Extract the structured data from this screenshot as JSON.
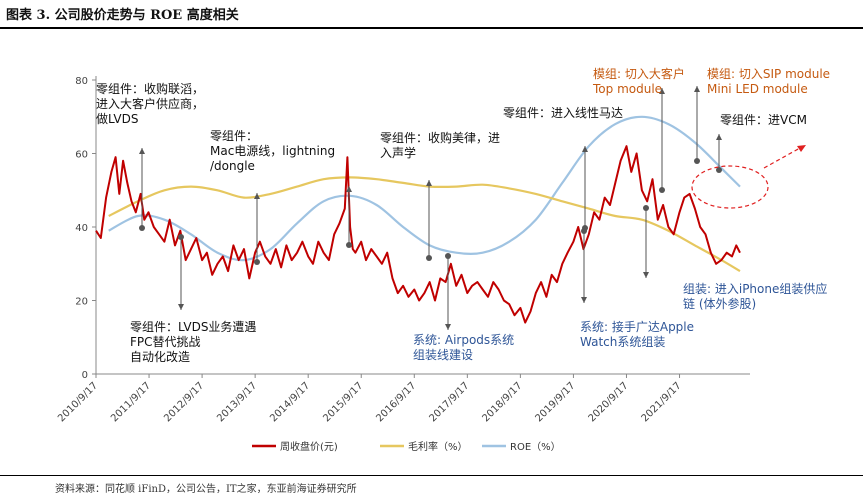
{
  "header": {
    "title": "图表 3.  公司股价走势与 ROE 高度相关"
  },
  "source": "资料来源：同花顺 iFinD，公司公告，IT之家，东亚前海证券研究所",
  "chart_data": {
    "type": "line",
    "title": "",
    "xlabel": "",
    "ylabel": "",
    "ylim": [
      0,
      80
    ],
    "yticks": [
      0,
      20,
      40,
      60,
      80
    ],
    "xticks": [
      "2010/9/17",
      "2011/9/17",
      "2012/9/17",
      "2013/9/17",
      "2014/9/17",
      "2015/9/17",
      "2016/9/17",
      "2017/9/17",
      "2018/9/17",
      "2019/9/17",
      "2020/9/17",
      "2021/9/17"
    ],
    "x_range": [
      2010.71,
      2022.85
    ],
    "grid": false,
    "legend_position": "bottom",
    "colors": {
      "price": "#c00000",
      "margin": "#e6c75f",
      "roe": "#9fc3e2",
      "annotation": "#555555",
      "highlight": "#e02020"
    },
    "series": [
      {
        "name": "周收盘价(元)",
        "x": [
          2010.71,
          2010.8,
          2010.9,
          2011.0,
          2011.08,
          2011.15,
          2011.22,
          2011.3,
          2011.38,
          2011.46,
          2011.55,
          2011.62,
          2011.7,
          2011.8,
          2011.9,
          2012.0,
          2012.1,
          2012.2,
          2012.3,
          2012.4,
          2012.5,
          2012.6,
          2012.71,
          2012.8,
          2012.9,
          2013.0,
          2013.1,
          2013.2,
          2013.3,
          2013.4,
          2013.5,
          2013.6,
          2013.71,
          2013.8,
          2013.9,
          2014.0,
          2014.1,
          2014.2,
          2014.3,
          2014.4,
          2014.5,
          2014.6,
          2014.71,
          2014.8,
          2014.9,
          2015.0,
          2015.1,
          2015.2,
          2015.3,
          2015.4,
          2015.45,
          2015.5,
          2015.55,
          2015.6,
          2015.71,
          2015.8,
          2015.9,
          2016.0,
          2016.1,
          2016.2,
          2016.3,
          2016.4,
          2016.5,
          2016.6,
          2016.71,
          2016.8,
          2016.9,
          2017.0,
          2017.1,
          2017.2,
          2017.3,
          2017.4,
          2017.5,
          2017.6,
          2017.71,
          2017.8,
          2017.9,
          2018.0,
          2018.1,
          2018.2,
          2018.3,
          2018.4,
          2018.5,
          2018.6,
          2018.71,
          2018.8,
          2018.9,
          2019.0,
          2019.1,
          2019.2,
          2019.3,
          2019.4,
          2019.5,
          2019.6,
          2019.71,
          2019.8,
          2019.9,
          2020.0,
          2020.1,
          2020.2,
          2020.3,
          2020.4,
          2020.5,
          2020.6,
          2020.71,
          2020.8,
          2020.9,
          2021.0,
          2021.1,
          2021.2,
          2021.3,
          2021.4,
          2021.5,
          2021.6,
          2021.71,
          2021.8,
          2021.9,
          2022.0,
          2022.1,
          2022.2,
          2022.3,
          2022.4,
          2022.5,
          2022.6,
          2022.7,
          2022.78,
          2022.85
        ],
        "values": [
          39,
          37,
          48,
          55,
          59,
          49,
          58,
          52,
          47,
          44,
          49,
          42,
          44,
          40,
          38,
          36,
          42,
          35,
          39,
          31,
          34,
          37,
          31,
          33,
          27,
          30,
          32,
          28,
          35,
          31,
          34,
          26,
          33,
          36,
          32,
          30,
          34,
          29,
          35,
          31,
          33,
          36,
          32,
          30,
          36,
          33,
          31,
          38,
          41,
          45,
          59,
          40,
          34,
          33,
          36,
          31,
          34,
          32,
          30,
          33,
          26,
          22,
          24,
          21,
          23,
          20,
          22,
          25,
          20,
          26,
          25,
          30,
          24,
          27,
          22,
          24,
          25,
          23,
          21,
          25,
          23,
          20,
          19,
          16,
          18,
          14,
          17,
          22,
          25,
          21,
          27,
          25,
          30,
          33,
          36,
          40,
          34,
          38,
          44,
          42,
          48,
          46,
          52,
          58,
          62,
          55,
          60,
          50,
          47,
          53,
          42,
          46,
          40,
          38,
          44,
          48,
          49,
          45,
          40,
          38,
          33,
          30,
          31,
          33,
          32,
          35,
          33
        ],
        "color": "#c00000"
      },
      {
        "name": "毛利率（%）",
        "x": [
          2010.95,
          2011.5,
          2012.0,
          2012.5,
          2013.0,
          2013.5,
          2014.0,
          2014.5,
          2015.0,
          2015.5,
          2016.0,
          2016.5,
          2017.0,
          2017.5,
          2018.0,
          2018.5,
          2019.0,
          2019.5,
          2020.0,
          2020.5,
          2021.0,
          2021.5,
          2022.0,
          2022.5,
          2022.85
        ],
        "values": [
          43,
          47,
          50,
          51,
          50,
          48,
          49,
          51,
          53,
          53.5,
          53,
          52,
          51,
          51,
          51.5,
          50.5,
          49,
          47,
          45,
          43,
          42,
          39,
          35,
          31,
          28
        ],
        "color": "#e6c75f"
      },
      {
        "name": "ROE（%）",
        "x": [
          2010.95,
          2011.5,
          2012.0,
          2012.5,
          2013.0,
          2013.5,
          2014.0,
          2014.5,
          2015.0,
          2015.5,
          2016.0,
          2016.5,
          2017.0,
          2017.5,
          2018.0,
          2018.5,
          2019.0,
          2019.5,
          2020.0,
          2020.5,
          2021.0,
          2021.5,
          2022.0,
          2022.5,
          2022.85
        ],
        "values": [
          39,
          43,
          42,
          38,
          33,
          31,
          34,
          41,
          47,
          48.5,
          46,
          40,
          35,
          33,
          33,
          36,
          42,
          52,
          62,
          68,
          70,
          68,
          63,
          56,
          51
        ],
        "color": "#9fc3e2"
      }
    ],
    "annotations": [
      {
        "text": [
          "零组件：收购联滔，",
          "进入大客户供应商，",
          "做LVDS"
        ],
        "style": "black"
      },
      {
        "text": [
          "零组件：",
          "Mac电源线，lightning",
          "/dongle"
        ],
        "style": "black"
      },
      {
        "text": [
          "零组件：收购美律，进",
          "入声学"
        ],
        "style": "black"
      },
      {
        "text": [
          "零组件：进入线性马达"
        ],
        "style": "black"
      },
      {
        "text": [
          "模组: 切入大客户",
          "Top module"
        ],
        "style": "orange"
      },
      {
        "text": [
          "模组: 切入SIP module",
          "Mini LED module"
        ],
        "style": "orange"
      },
      {
        "text": [
          "零组件：进VCM"
        ],
        "style": "black"
      },
      {
        "text": [
          "零组件：LVDS业务遭遇",
          "FPC替代挑战",
          "自动化改造"
        ],
        "style": "black"
      },
      {
        "text": [
          "系统: Airpods系统",
          "组装线建设"
        ],
        "style": "blue"
      },
      {
        "text": [
          "系统: 接手广达Apple",
          "Watch系统组装"
        ],
        "style": "blue"
      },
      {
        "text": [
          "组装: 进入iPhone组装供应",
          "链 (体外参股)"
        ],
        "style": "blue"
      }
    ]
  }
}
